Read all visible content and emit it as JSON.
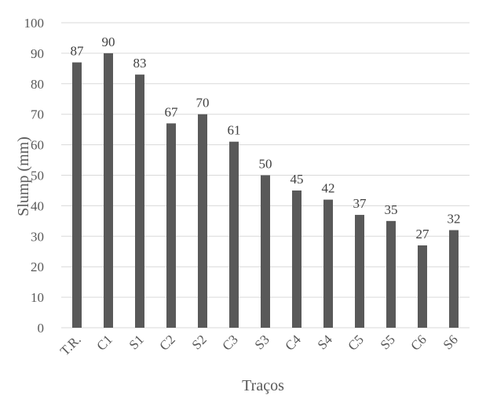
{
  "chart_data": {
    "type": "bar",
    "title": "",
    "xlabel": "Traços",
    "ylabel": "Slump (mm)",
    "ylim": [
      0,
      100
    ],
    "y_ticks": [
      0,
      10,
      20,
      30,
      40,
      50,
      60,
      70,
      80,
      90,
      100
    ],
    "grid": true,
    "categories": [
      "T.R.",
      "C1",
      "S1",
      "C2",
      "S2",
      "C3",
      "S3",
      "C4",
      "S4",
      "C5",
      "S5",
      "C6",
      "S6"
    ],
    "values": [
      87,
      90,
      83,
      67,
      70,
      61,
      50,
      45,
      42,
      37,
      35,
      27,
      32
    ],
    "data_labels": [
      "87",
      "90",
      "83",
      "67",
      "70",
      "61",
      "50",
      "45",
      "42",
      "37",
      "35",
      "27",
      "32"
    ],
    "bar_color": "#595959",
    "grid_color": "#d9d9d9"
  }
}
